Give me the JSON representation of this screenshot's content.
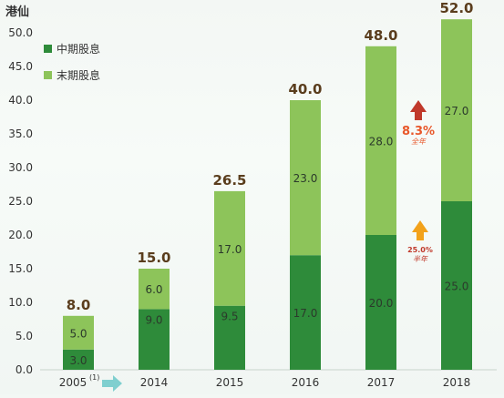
{
  "chart_data": {
    "type": "bar",
    "stacked": true,
    "ylabel": "港仙",
    "ylim": [
      0,
      50
    ],
    "yticks": [
      "0.0",
      "5.0",
      "10.0",
      "15.0",
      "20.0",
      "25.0",
      "30.0",
      "35.0",
      "40.0",
      "45.0",
      "50.0"
    ],
    "categories": [
      "2005",
      "2014",
      "2015",
      "2016",
      "2017",
      "2018"
    ],
    "category_footnote": {
      "category": "2005",
      "text": "(1)"
    },
    "series": [
      {
        "name": "中期股息",
        "color": "#2e8b3a",
        "values": [
          3.0,
          9.0,
          9.5,
          17.0,
          20.0,
          25.0
        ],
        "labels": [
          "3.0",
          "9.0",
          "9.5",
          "17.0",
          "20.0",
          "25.0"
        ]
      },
      {
        "name": "末期股息",
        "color": "#8dc45a",
        "values": [
          5.0,
          6.0,
          17.0,
          23.0,
          28.0,
          27.0
        ],
        "labels": [
          "5.0",
          "6.0",
          "17.0",
          "23.0",
          "28.0",
          "27.0"
        ]
      }
    ],
    "totals": [
      8.0,
      15.0,
      26.5,
      40.0,
      48.0,
      52.0
    ],
    "total_labels": [
      "8.0",
      "15.0",
      "26.5",
      "40.0",
      "48.0",
      "52.0"
    ],
    "legend": "top-left",
    "grid": false,
    "annotations": [
      {
        "value": "8.3%",
        "label": "全年",
        "arrow_color": "#c0392b",
        "text_color": "#e8572a"
      },
      {
        "value": "25.0%",
        "label": "半年",
        "arrow_color": "#f2a21b",
        "text_color": "#c0392b"
      }
    ],
    "axis_arrow_color": "#7fcfcf"
  }
}
